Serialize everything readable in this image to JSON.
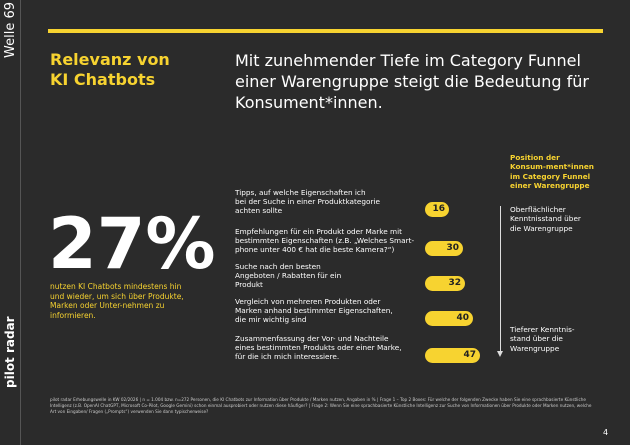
{
  "side_label": "Welle 69",
  "brand": "pilot radar",
  "page_number": "4",
  "headline": "Relevanz von\nKI Chatbots",
  "intro": "Mit zunehmender Tiefe im Category Funnel einer Warengruppe steigt die Bedeutung für Konsument*innen.",
  "kpi": {
    "value": "27%",
    "text": "nutzen KI Chatbots mindestens hin und wieder, um sich über Produkte, Marken oder Unter-nehmen zu informieren."
  },
  "funnel": {
    "title": "Position der Konsum-ment*innen im Category Funnel einer Warengruppe",
    "top": "Oberflächlicher Kenntnisstand über die Warengruppe",
    "bottom": "Tieferer Kenntnis-stand über die Warengruppe"
  },
  "footnote": "pilot radar Erhebungswelle in KW 02/2026 | n = 1.004 bzw. n=272 Personen, die KI Chatbots zur Information über Produkte / Marken nutzen, Angaben in % | Frage 1 – Top 2 Boxes: Für welche der folgenden Zwecke haben Sie eine sprachbasierte Künstliche Intelligenz (z.B. OpenAI ChatGPT, Microsoft Co-Pilot, Google Gemini) schon einmal ausprobiert oder nutzen diese häufiger? | Frage 2: Wenn Sie eine sprachbasierte Künstliche Intelligenz zur Suche von Informationen über Produkte oder Marken nutzen, welche Art von Eingaben/ Fragen („Prompts“) verwenden Sie dann typischerweise?",
  "chart_data": {
    "type": "bar",
    "categories": [
      "Tipps, auf welche Eigenschaften ich\nbei der Suche in einer Produktkategorie\nachten sollte",
      "Empfehlungen für ein Produkt oder Marke mit\nbestimmten Eigenschaften (z.B. „Welches Smart-\nphone unter 400 € hat die beste Kamera?“)",
      "Suche nach den besten\nAngeboten / Rabatten für ein\nProdukt",
      "Vergleich von mehreren Produkten oder\nMarken anhand bestimmter Eigenschaften,\ndie mir wichtig sind",
      "Zusammenfassung der Vor- und Nachteile\neines bestimmten Produkts oder einer Marke,\nfür die ich mich interessiere."
    ],
    "values": [
      16,
      30,
      32,
      40,
      47
    ],
    "color": "#f7d330"
  }
}
